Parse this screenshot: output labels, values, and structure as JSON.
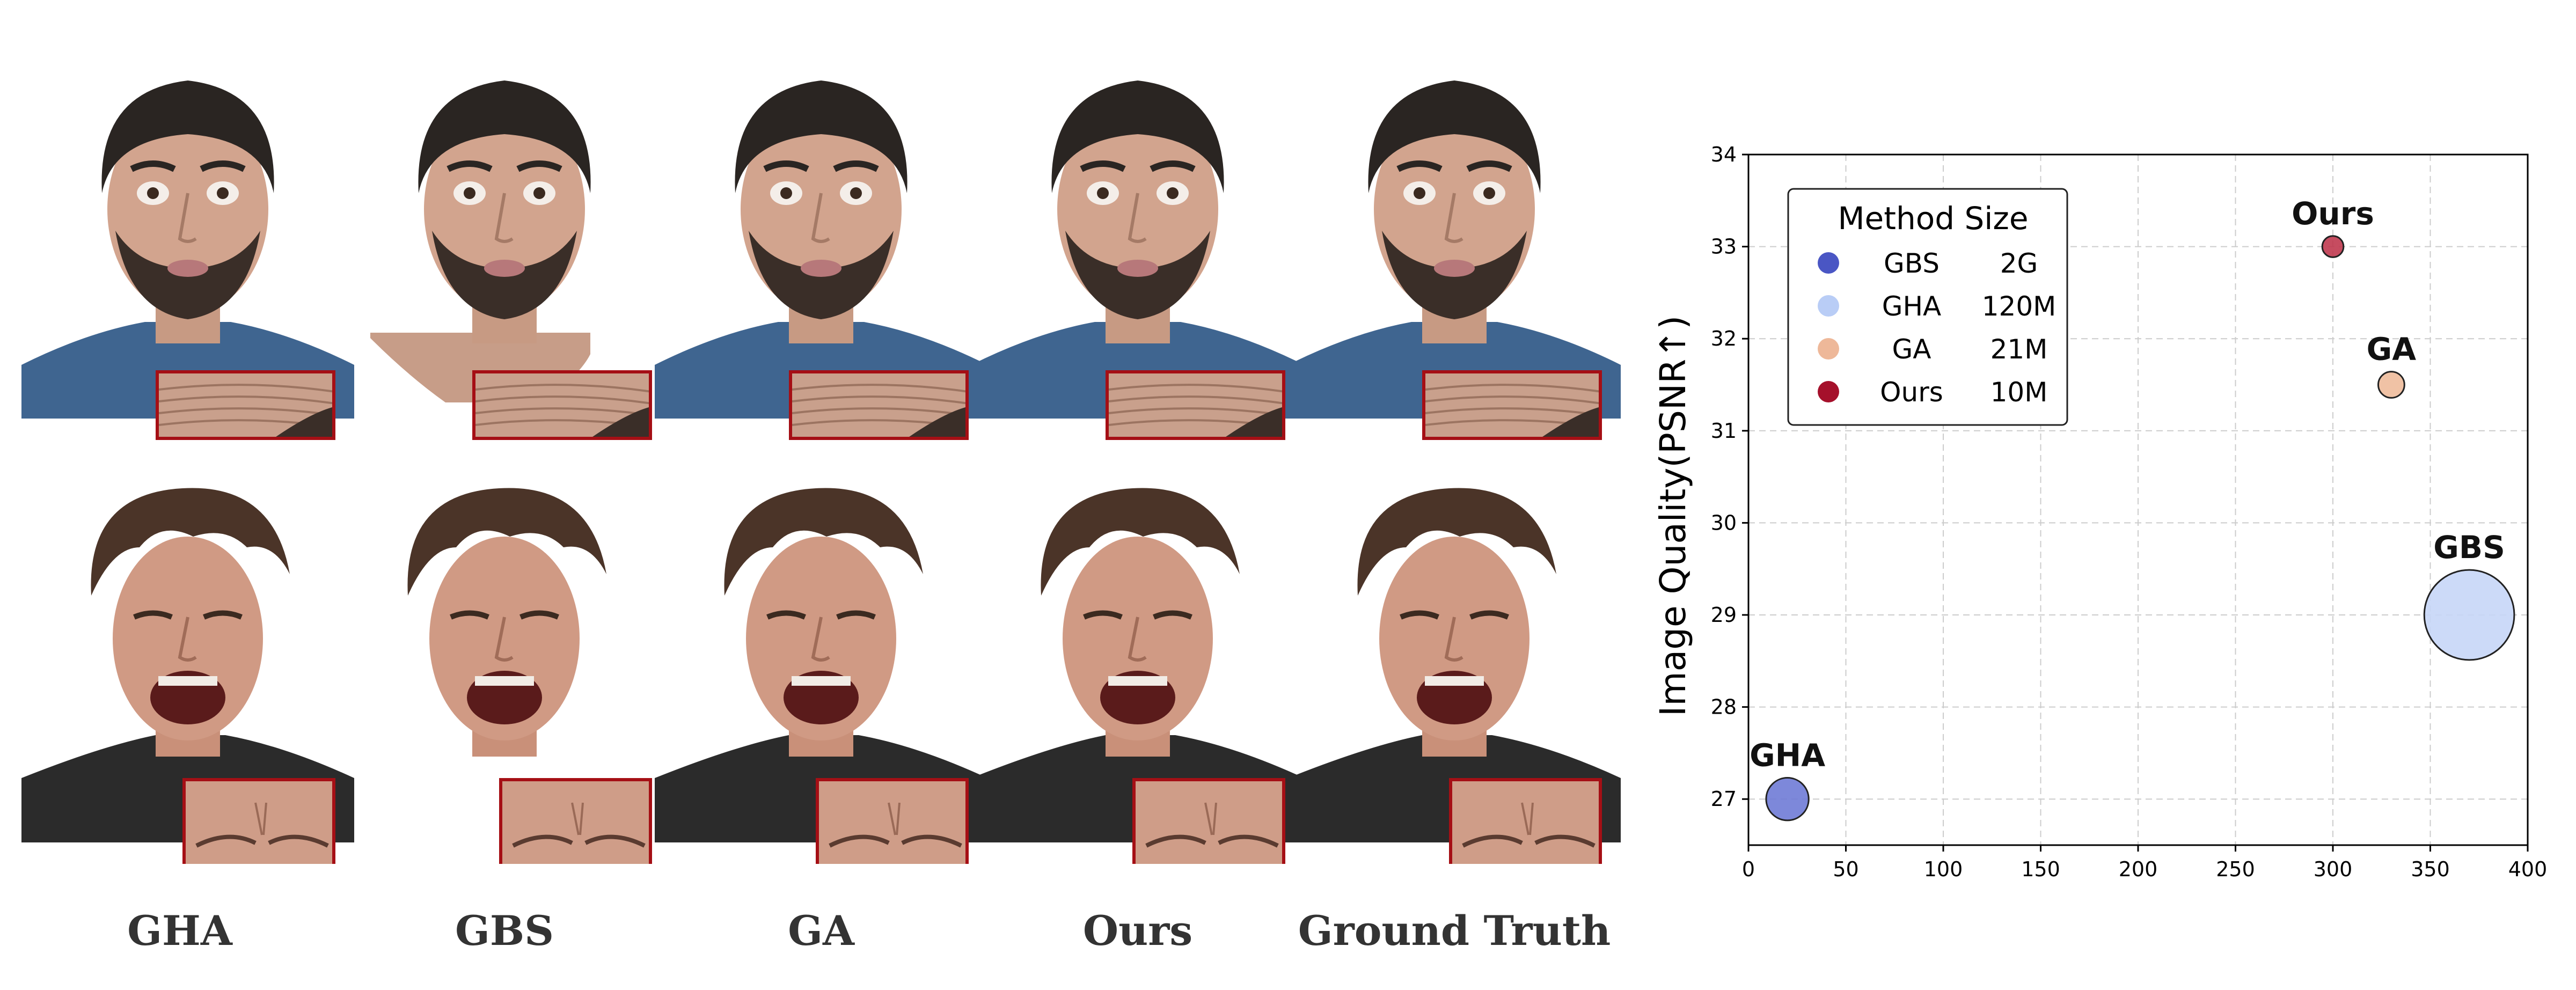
{
  "figure": {
    "columns": [
      "GHA",
      "GBS",
      "GA",
      "Ours",
      "Ground Truth"
    ],
    "rows": [
      "bearded-man-neutral",
      "curly-hair-grimace"
    ]
  },
  "chart_data": {
    "type": "scatter",
    "title": "",
    "xlabel": "",
    "ylabel": "Image Quality(PSNR↑)",
    "xlim": [
      0,
      400
    ],
    "ylim": [
      26.5,
      34
    ],
    "xticks": [
      0,
      50,
      100,
      150,
      200,
      250,
      300,
      350,
      400
    ],
    "yticks": [
      27,
      28,
      29,
      30,
      31,
      32,
      33,
      34
    ],
    "grid": true,
    "legend": {
      "title": "Method Size",
      "placement": "upper-left",
      "entries": [
        {
          "method": "GBS",
          "size": "2G",
          "color": "#4a56c4"
        },
        {
          "method": "GHA",
          "size": "120M",
          "color": "#b9cdf6"
        },
        {
          "method": "GA",
          "size": "21M",
          "color": "#eeb899"
        },
        {
          "method": "Ours",
          "size": "10M",
          "color": "#a5102b"
        }
      ]
    },
    "points": [
      {
        "label": "GHA",
        "x": 20,
        "y": 27.0,
        "color": "#6f7bd6",
        "radius_units": 2.6
      },
      {
        "label": "GBS",
        "x": 370,
        "y": 29.0,
        "color": "#c6d6f7",
        "radius_units": 5.5
      },
      {
        "label": "GA",
        "x": 330,
        "y": 31.5,
        "color": "#eebb9b",
        "radius_units": 1.6
      },
      {
        "label": "Ours",
        "x": 300,
        "y": 33.0,
        "color": "#c0384f",
        "radius_units": 1.3
      }
    ]
  }
}
